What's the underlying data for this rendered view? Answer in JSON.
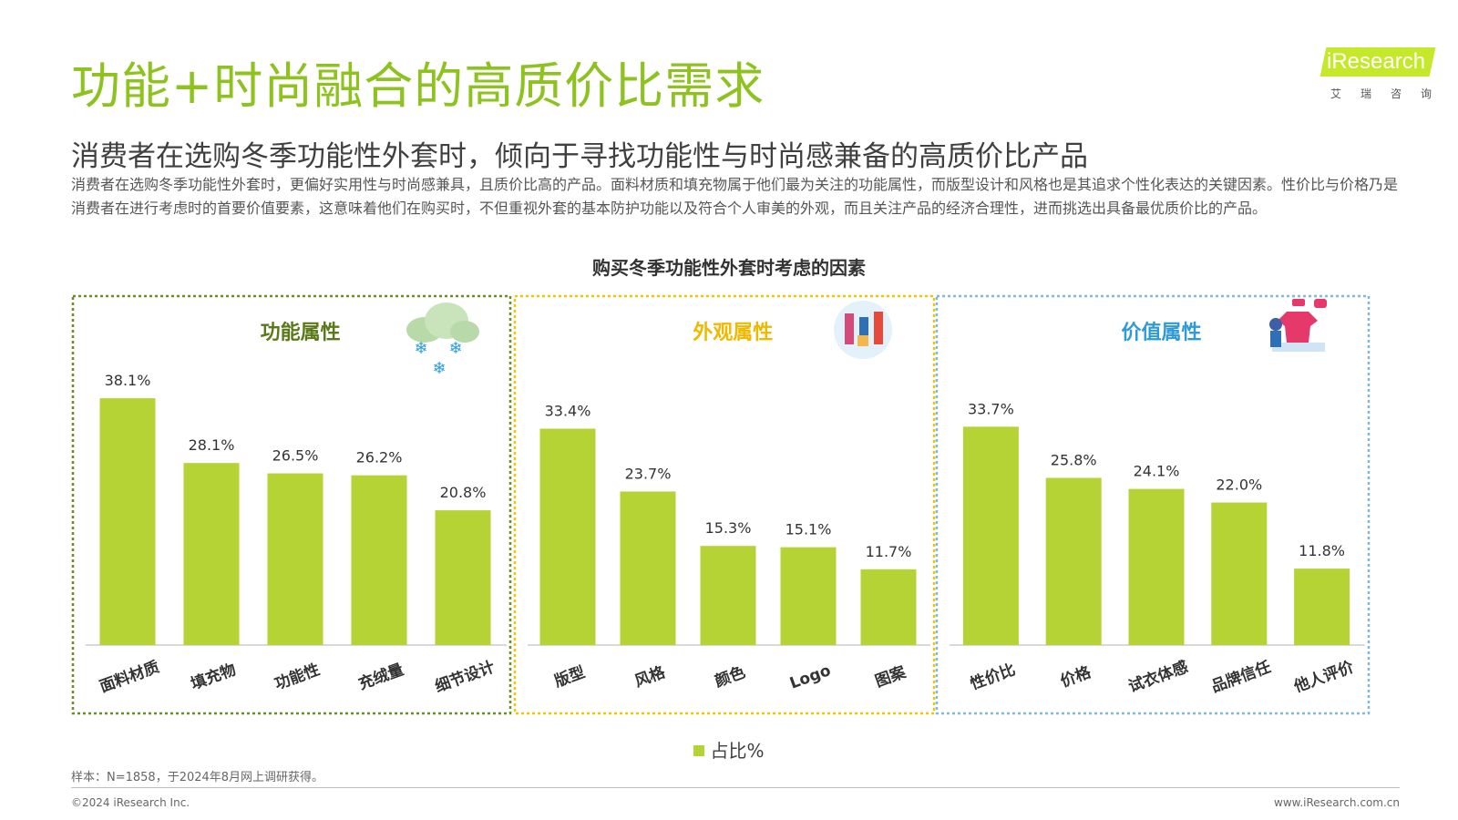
{
  "header": {
    "title": "功能+时尚融合的高质价比需求",
    "subtitle": "消费者在选购冬季功能性外套时，倾向于寻找功能性与时尚感兼备的高质价比产品",
    "description": "消费者在选购冬季功能性外套时，更偏好实用性与时尚感兼具，且质价比高的产品。面料材质和填充物属于他们最为关注的功能属性，而版型设计和风格也是其追求个性化表达的关键因素。性价比与价格乃是消费者在进行考虑时的首要价值要素，这意味着他们在购买时，不但重视外套的基本防护功能以及符合个人审美的外观，而且关注产品的经济合理性，进而挑选出具备最优质价比的产品。"
  },
  "logo": {
    "brand": "iResearch",
    "sub": "艾瑞咨询"
  },
  "chart_data": {
    "type": "bar",
    "title": "购买冬季功能性外套时考虑的因素",
    "ylim": [
      0,
      45
    ],
    "unit": "%",
    "grid": false,
    "legend_position": "bottom",
    "series": [
      {
        "name": "占比%",
        "color": "#b5d334"
      }
    ],
    "groups": [
      {
        "name": "功能属性",
        "border_color": "#6b8e23",
        "title_color": "#5a7a1a",
        "icon": "snow-cloud-icon",
        "categories": [
          "面料材质",
          "填充物",
          "功能性",
          "充绒量",
          "细节设计"
        ],
        "values": [
          38.1,
          28.1,
          26.5,
          26.2,
          20.8
        ]
      },
      {
        "name": "外观属性",
        "border_color": "#f5c400",
        "title_color": "#f0b800",
        "icon": "shopping-people-icon",
        "categories": [
          "版型",
          "风格",
          "颜色",
          "Logo",
          "图案"
        ],
        "values": [
          33.4,
          23.7,
          15.3,
          15.1,
          11.7
        ]
      },
      {
        "name": "价值属性",
        "border_color": "#7fb8e0",
        "title_color": "#2e9bd6",
        "icon": "clothing-shop-icon",
        "categories": [
          "性价比",
          "价格",
          "试衣体感",
          "品牌信任",
          "他人评价"
        ],
        "values": [
          33.7,
          25.8,
          24.1,
          22.0,
          11.8
        ]
      }
    ]
  },
  "footer": {
    "source_note": "样本：N=1858，于2024年8月网上调研获得。",
    "copyright": "©2024 iResearch Inc.",
    "website": "www.iResearch.com.cn"
  }
}
